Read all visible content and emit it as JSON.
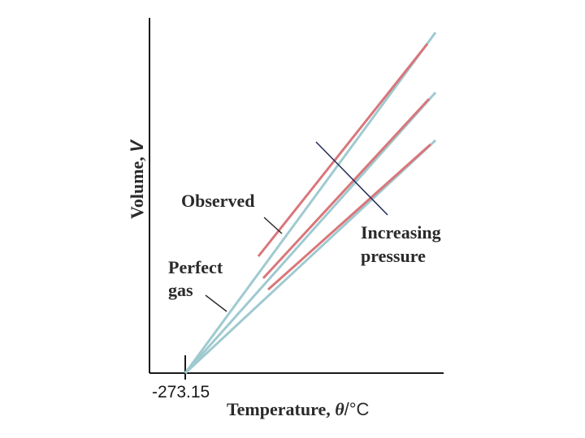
{
  "diagram": {
    "ylabel_text": "Volume, ",
    "ylabel_symbol": "V",
    "xlabel_text": "Temperature, ",
    "xlabel_symbol": "θ",
    "xlabel_unit": "/°C",
    "absolute_zero_label": "-273.15",
    "observed_label": "Observed",
    "perfect_gas_line1": "Perfect",
    "perfect_gas_line2": "gas",
    "increasing_line1": "Increasing",
    "increasing_line2": "pressure",
    "colors": {
      "axis": "#1a1a1a",
      "perfect_gas": "#9fcad0",
      "observed": "#d9767a",
      "pressure_arrow": "#1f2a57",
      "pointer": "#2a2a2a"
    }
  }
}
